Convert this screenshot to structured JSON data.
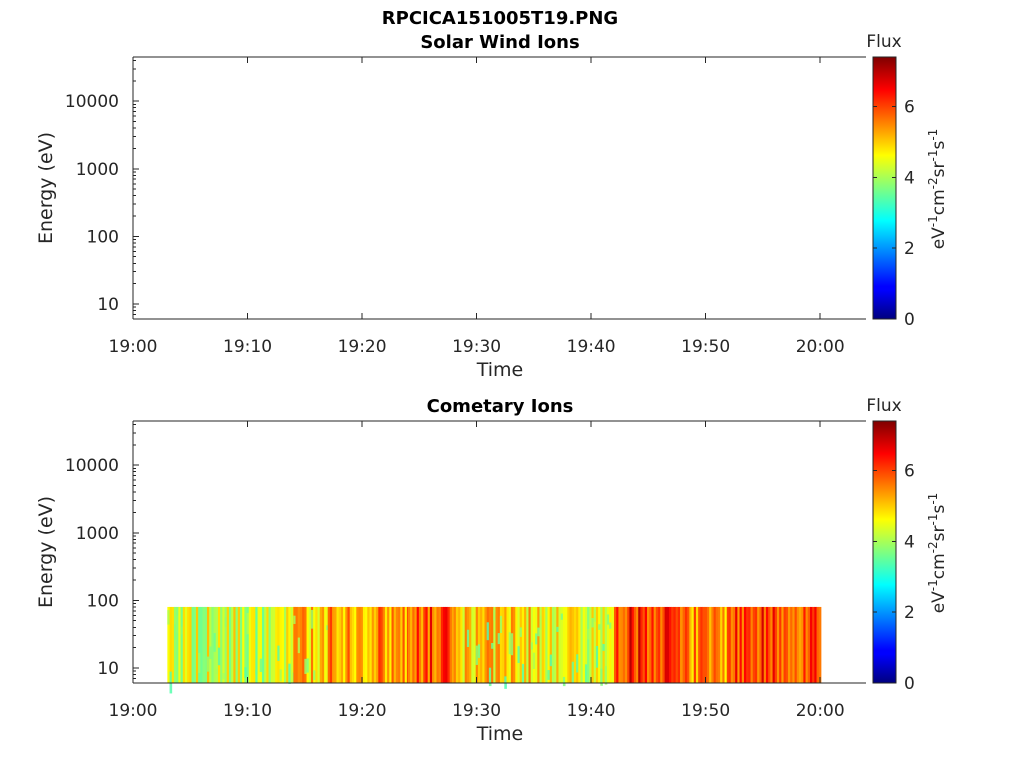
{
  "figure_title": "RPCICA151005T19.PNG",
  "colorbar": {
    "title": "Flux",
    "unit_parts": [
      "eV",
      "-1",
      "cm",
      "-2",
      "sr",
      "-1",
      "s",
      "-1"
    ],
    "ticks": [
      "0",
      "2",
      "4",
      "6"
    ],
    "range": [
      0,
      7.4
    ],
    "colormap": "jet"
  },
  "chart_data": [
    {
      "type": "heatmap",
      "title": "Solar Wind Ions",
      "xlabel": "Time",
      "ylabel": "Energy (eV)",
      "x_ticks": [
        "19:00",
        "19:10",
        "19:20",
        "19:30",
        "19:40",
        "19:50",
        "20:00"
      ],
      "x_range_minutes": [
        0,
        64
      ],
      "y_scale": "log",
      "y_ticks": [
        "10",
        "100",
        "1000",
        "10000"
      ],
      "y_range": [
        6,
        45000
      ],
      "grid": false,
      "data": []
    },
    {
      "type": "heatmap",
      "title": "Cometary Ions",
      "xlabel": "Time",
      "ylabel": "Energy (eV)",
      "x_ticks": [
        "19:00",
        "19:10",
        "19:20",
        "19:30",
        "19:40",
        "19:50",
        "20:00"
      ],
      "x_range_minutes": [
        0,
        64
      ],
      "y_scale": "log",
      "y_ticks": [
        "10",
        "100",
        "1000",
        "10000"
      ],
      "y_range": [
        6,
        45000
      ],
      "grid": false,
      "data_time_range": [
        "19:03",
        "20:00"
      ],
      "data_energy_max": 80,
      "segments": [
        {
          "start": "19:03",
          "end": "19:14",
          "mean_flux": 4.3
        },
        {
          "start": "19:14",
          "end": "19:17",
          "mean_flux": 5.0
        },
        {
          "start": "19:17",
          "end": "19:24",
          "mean_flux": 5.4
        },
        {
          "start": "19:24",
          "end": "19:28",
          "mean_flux": 5.9
        },
        {
          "start": "19:28",
          "end": "19:36",
          "mean_flux": 4.9
        },
        {
          "start": "19:36",
          "end": "19:42",
          "mean_flux": 4.5
        },
        {
          "start": "19:42",
          "end": "19:48",
          "mean_flux": 6.2
        },
        {
          "start": "19:48",
          "end": "19:52",
          "mean_flux": 5.4
        },
        {
          "start": "19:52",
          "end": "20:00",
          "mean_flux": 6.0
        }
      ]
    }
  ]
}
